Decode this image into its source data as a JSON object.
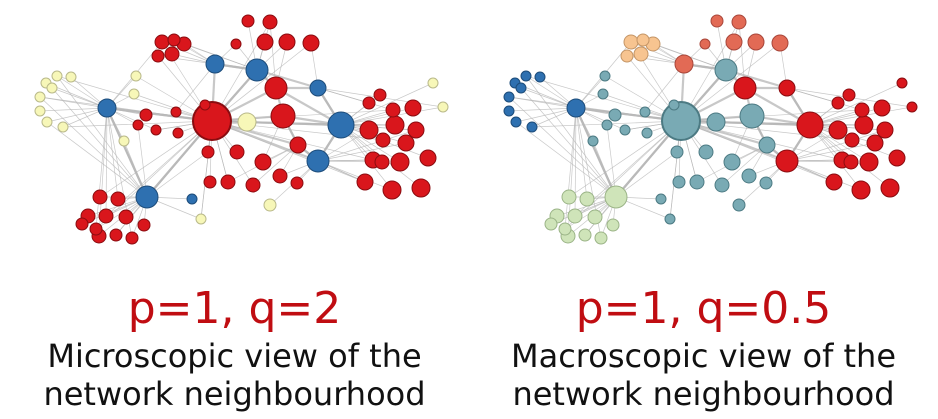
{
  "panels": [
    {
      "params": "p=1, q=2",
      "caption_line1": "Microscopic view of the",
      "caption_line2": "network neighbourhood",
      "colors": {
        "community_a": "#d9161c",
        "community_b": "#2e70b0",
        "community_c": "#f7f7b8"
      }
    },
    {
      "params": "p=1, q=0.5",
      "caption_line1": "Macroscopic view of the",
      "caption_line2": "network neighbourhood",
      "colors": {
        "community_a": "#d9161c",
        "community_b": "#e26a55",
        "community_c": "#79aab4",
        "community_d": "#2e70b0",
        "community_e": "#f7c490",
        "community_f": "#cfe4b9"
      }
    }
  ]
}
